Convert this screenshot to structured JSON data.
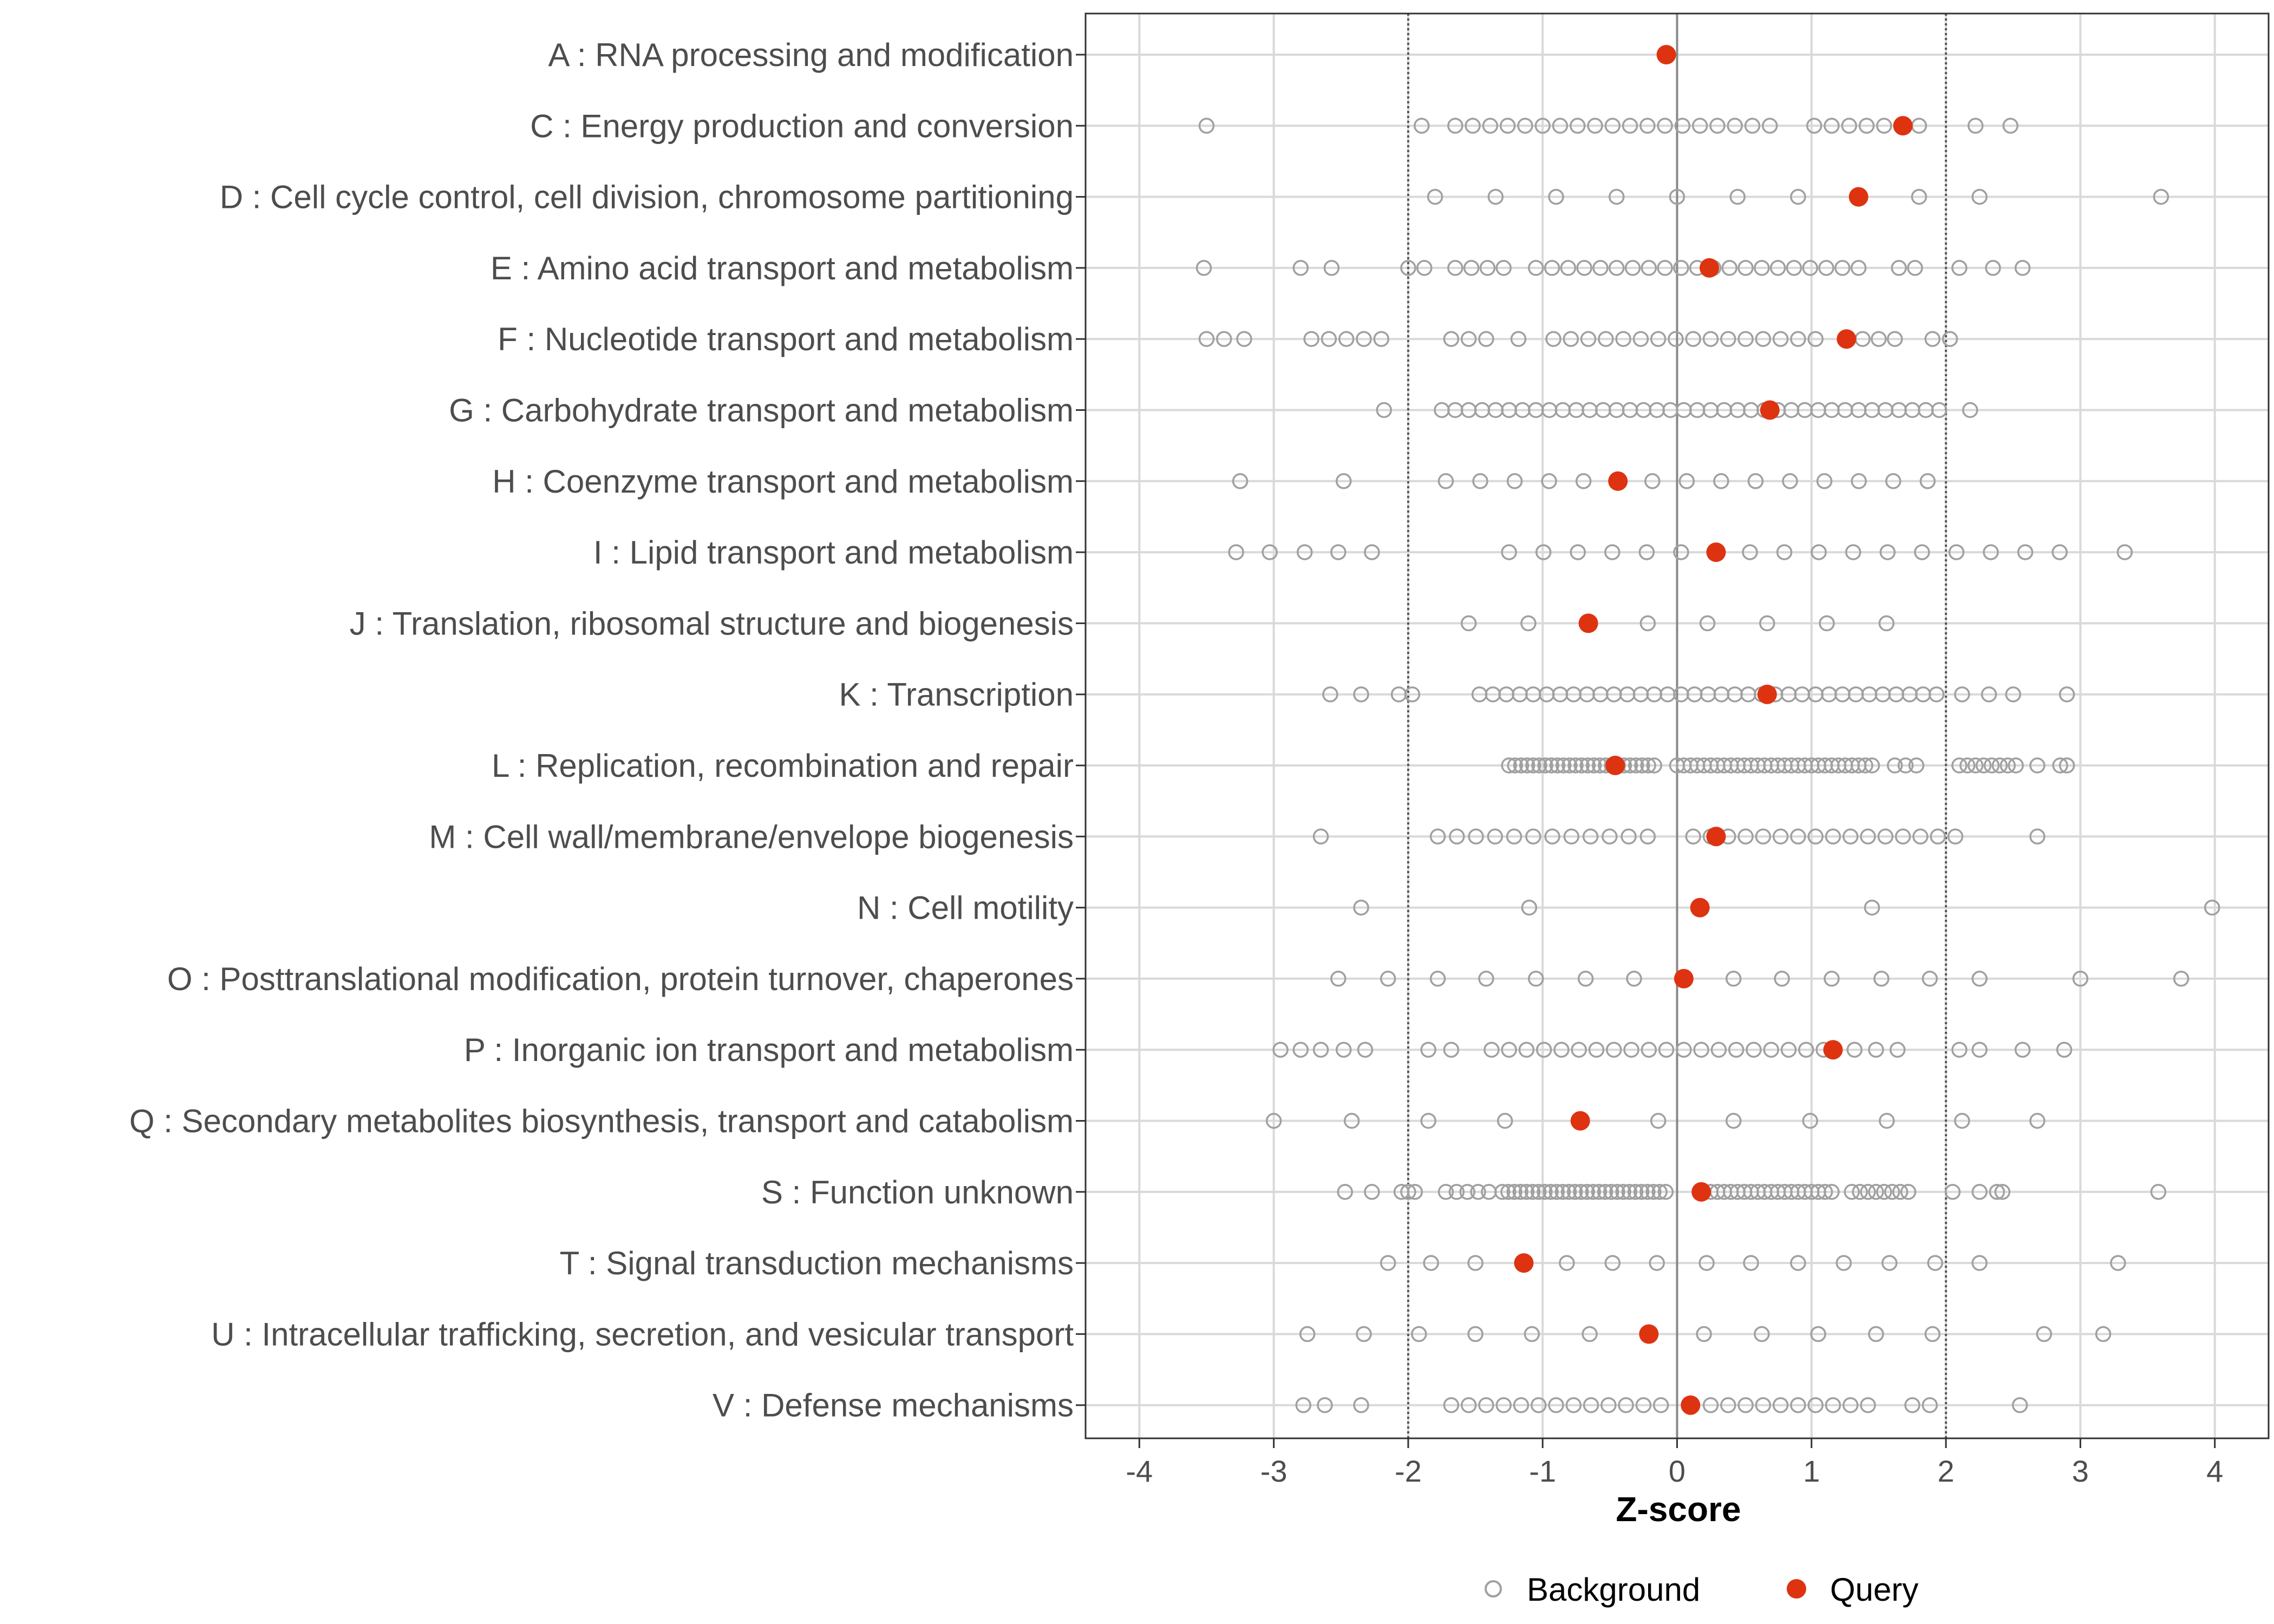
{
  "chart_data": {
    "type": "scatter",
    "xlabel": "Z-score",
    "xlim": [
      -4.4,
      4.4
    ],
    "xticks": [
      -4,
      -3,
      -2,
      -1,
      0,
      1,
      2,
      3,
      4
    ],
    "xtick_labels": [
      "-4",
      "-3",
      "-2",
      "-1",
      "0",
      "1",
      "2",
      "3",
      "4"
    ],
    "reference_lines": {
      "zero": 0,
      "dotted": [
        -2,
        2
      ]
    },
    "grid": true,
    "legend": {
      "position": "bottom",
      "entries": [
        {
          "name": "Background",
          "marker": "open-circle"
        },
        {
          "name": "Query",
          "marker": "filled-circle"
        }
      ]
    },
    "colors": {
      "background": "#a0a0a0",
      "query": "#dd3311",
      "grid": "#d9d9d9",
      "axis": "#333333",
      "zero_line": "#888888"
    },
    "categories": [
      "A : RNA processing and modification",
      "C : Energy production and conversion",
      "D : Cell cycle control, cell division, chromosome partitioning",
      "E : Amino acid transport and metabolism",
      "F : Nucleotide transport and metabolism",
      "G : Carbohydrate transport and metabolism",
      "H : Coenzyme transport and metabolism",
      "I : Lipid transport and metabolism",
      "J : Translation, ribosomal structure and biogenesis",
      "K : Transcription",
      "L : Replication, recombination and repair",
      "M : Cell wall/membrane/envelope biogenesis",
      "N : Cell motility",
      "O : Posttranslational modification, protein turnover, chaperones",
      "P : Inorganic ion transport and metabolism",
      "Q : Secondary metabolites biosynthesis, transport and catabolism",
      "S : Function unknown",
      "T : Signal transduction mechanisms",
      "U : Intracellular trafficking, secretion, and vesicular transport",
      "V : Defense mechanisms"
    ],
    "query": [
      -0.08,
      1.68,
      1.35,
      0.24,
      1.26,
      0.69,
      -0.44,
      0.29,
      -0.66,
      0.67,
      -0.46,
      0.29,
      0.17,
      0.05,
      1.16,
      -0.72,
      0.18,
      -1.14,
      -0.21,
      0.1
    ],
    "background_spec": [
      {
        "extras": [],
        "runs": []
      },
      {
        "extras": [
          -3.5,
          -1.9,
          2.22,
          2.48
        ],
        "runs": [
          [
            -1.65,
            0.75,
            0.13
          ],
          [
            1.02,
            1.9,
            0.13
          ]
        ]
      },
      {
        "extras": [
          -1.8,
          -1.35,
          -0.9,
          -0.45,
          0.0,
          0.45,
          0.9,
          1.8,
          2.25,
          3.6
        ],
        "runs": []
      },
      {
        "extras": [
          -3.52,
          -2.8,
          -2.57,
          -2.0,
          -1.88,
          2.1,
          2.35,
          2.57
        ],
        "runs": [
          [
            -1.65,
            -1.28,
            0.12
          ],
          [
            -1.05,
            1.42,
            0.12
          ],
          [
            1.65,
            1.88,
            0.12
          ]
        ]
      },
      {
        "extras": [
          -3.5,
          -3.37,
          -3.22,
          -1.18,
          1.9,
          2.03
        ],
        "runs": [
          [
            -2.72,
            -2.2,
            0.13
          ],
          [
            -1.68,
            -1.42,
            0.13
          ],
          [
            -0.92,
            1.15,
            0.13
          ],
          [
            1.38,
            1.62,
            0.12
          ]
        ]
      },
      {
        "extras": [
          -2.18,
          2.18
        ],
        "runs": [
          [
            -1.75,
            1.95,
            0.1
          ]
        ]
      },
      {
        "extras": [
          -3.25,
          -2.48
        ],
        "runs": [
          [
            -1.72,
            2.1,
            0.256
          ]
        ]
      },
      {
        "extras": [
          -3.28,
          -3.03,
          -2.77,
          -2.52,
          -2.27,
          3.33
        ],
        "runs": [
          [
            -1.25,
            2.85,
            0.256
          ]
        ]
      },
      {
        "extras": [],
        "runs": [
          [
            -1.55,
            2.0,
            0.444
          ]
        ]
      },
      {
        "extras": [
          -2.58,
          -2.35,
          -2.07,
          -1.97,
          2.12,
          2.32,
          2.5,
          2.9
        ],
        "runs": [
          [
            -1.47,
            1.97,
            0.1
          ]
        ]
      },
      {
        "extras": [
          2.68,
          2.85,
          2.9
        ],
        "runs": [
          [
            -1.25,
            -0.15,
            0.045
          ],
          [
            0.0,
            1.45,
            0.05
          ],
          [
            1.62,
            1.85,
            0.08
          ],
          [
            2.1,
            2.52,
            0.06
          ]
        ]
      },
      {
        "extras": [
          -2.65,
          2.68
        ],
        "runs": [
          [
            -1.78,
            -0.08,
            0.142
          ],
          [
            0.12,
            2.07,
            0.13
          ]
        ]
      },
      {
        "extras": [
          -2.35,
          -1.1,
          1.45,
          3.98
        ],
        "runs": []
      },
      {
        "extras": [
          -2.52,
          -2.15,
          -1.78,
          -1.42,
          -1.05,
          -0.68,
          -0.32,
          0.05,
          0.42,
          0.78,
          1.15,
          1.52,
          1.88,
          2.25,
          3.0,
          3.75
        ],
        "runs": []
      },
      {
        "extras": [
          -2.95,
          -2.8,
          -2.65,
          -2.48,
          -2.32,
          -1.85,
          -1.68,
          1.32,
          1.48,
          1.64,
          2.1,
          2.25,
          2.57,
          2.88
        ],
        "runs": [
          [
            -1.38,
            -0.08,
            0.13
          ],
          [
            0.05,
            1.1,
            0.13
          ]
        ]
      },
      {
        "extras": [
          -3.0,
          -2.42,
          -1.85,
          -1.28,
          -0.14,
          0.42,
          0.99,
          1.56,
          2.12,
          2.68
        ],
        "runs": []
      },
      {
        "extras": [
          -2.47,
          -2.27,
          -2.05,
          -2.0,
          -1.95,
          2.05,
          2.25,
          2.38,
          2.42,
          3.58
        ],
        "runs": [
          [
            -1.72,
            -1.4,
            0.08
          ],
          [
            -1.3,
            -0.05,
            0.045
          ],
          [
            0.25,
            1.15,
            0.05
          ],
          [
            1.3,
            1.75,
            0.06
          ]
        ]
      },
      {
        "extras": [
          -2.15,
          -1.83,
          -1.5,
          -0.82,
          -0.48,
          -0.15,
          0.22,
          0.55,
          0.9,
          1.24,
          1.58,
          1.92,
          2.25,
          3.28
        ],
        "runs": []
      },
      {
        "extras": [
          -2.75,
          -2.33,
          -1.92,
          -1.5,
          -1.08,
          -0.65,
          0.2,
          0.63,
          1.05,
          1.48,
          1.9,
          2.73,
          3.17
        ],
        "runs": []
      },
      {
        "extras": [
          -2.78,
          -2.62,
          -2.35,
          1.75,
          1.88,
          2.55
        ],
        "runs": [
          [
            -1.68,
            -0.05,
            0.13
          ],
          [
            0.25,
            1.5,
            0.13
          ]
        ]
      }
    ]
  }
}
